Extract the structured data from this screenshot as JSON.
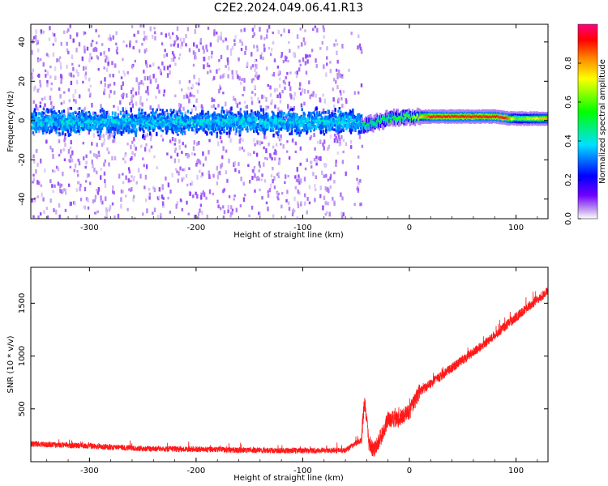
{
  "figure": {
    "title": "C2E2.2024.049.06.41.R13"
  },
  "chart_data": [
    {
      "type": "heatmap",
      "xlabel": "Height of straight line (km)",
      "ylabel": "Frequency (Hz)",
      "xlim": [
        -355,
        130
      ],
      "ylim": [
        -50,
        49
      ],
      "xticks": [
        -300,
        -200,
        -100,
        0,
        100
      ],
      "yticks": [
        -40,
        -20,
        0,
        20,
        40
      ],
      "colorbar": {
        "label": "Normalized spectral amplitude",
        "range": [
          0.0,
          1.0
        ],
        "ticks": [
          0.0,
          0.2,
          0.4,
          0.6,
          0.8
        ],
        "colormap": [
          "#ffffff",
          "#c8a8f0",
          "#7000ff",
          "#0000ff",
          "#00e0ff",
          "#00ff00",
          "#ffff00",
          "#ff8000",
          "#ff0000",
          "#ff0080"
        ]
      },
      "description_series": [
        {
          "region": "noisy",
          "x_range": [
            -355,
            -45
          ],
          "freq_center": 0,
          "spread": 50
        },
        {
          "region": "signal",
          "x_range": [
            -45,
            130
          ],
          "freq_profile": [
            [
              -45,
              -3
            ],
            [
              -20,
              1
            ],
            [
              0,
              2
            ],
            [
              80,
              2
            ],
            [
              95,
              1
            ],
            [
              130,
              1
            ]
          ],
          "amplitude_profile": [
            [
              -40,
              0.5
            ],
            [
              0,
              0.6
            ],
            [
              20,
              0.9
            ],
            [
              90,
              0.9
            ],
            [
              100,
              0.6
            ],
            [
              130,
              0.8
            ]
          ]
        }
      ]
    },
    {
      "type": "line",
      "xlabel": "Height of straight line (km)",
      "ylabel": "SNR (10 * v/v)",
      "xlim": [
        -355,
        130
      ],
      "ylim": [
        0,
        1840
      ],
      "xticks": [
        -300,
        -200,
        -100,
        0,
        100
      ],
      "yticks": [
        500,
        1000,
        1500
      ],
      "series": [
        {
          "color": "#ff1a1a",
          "profile": [
            {
              "x": -355,
              "y": 160
            },
            {
              "x": -300,
              "y": 140
            },
            {
              "x": -250,
              "y": 115
            },
            {
              "x": -200,
              "y": 110
            },
            {
              "x": -150,
              "y": 100
            },
            {
              "x": -100,
              "y": 95
            },
            {
              "x": -60,
              "y": 100
            },
            {
              "x": -45,
              "y": 200
            },
            {
              "x": -42,
              "y": 560
            },
            {
              "x": -38,
              "y": 150
            },
            {
              "x": -33,
              "y": 80
            },
            {
              "x": -25,
              "y": 250
            },
            {
              "x": -20,
              "y": 380
            },
            {
              "x": -10,
              "y": 380
            },
            {
              "x": 0,
              "y": 450
            },
            {
              "x": 10,
              "y": 650
            },
            {
              "x": 30,
              "y": 800
            },
            {
              "x": 50,
              "y": 950
            },
            {
              "x": 70,
              "y": 1100
            },
            {
              "x": 90,
              "y": 1270
            },
            {
              "x": 110,
              "y": 1440
            },
            {
              "x": 130,
              "y": 1600
            }
          ],
          "noise_amplitude": "moderate"
        }
      ]
    }
  ]
}
